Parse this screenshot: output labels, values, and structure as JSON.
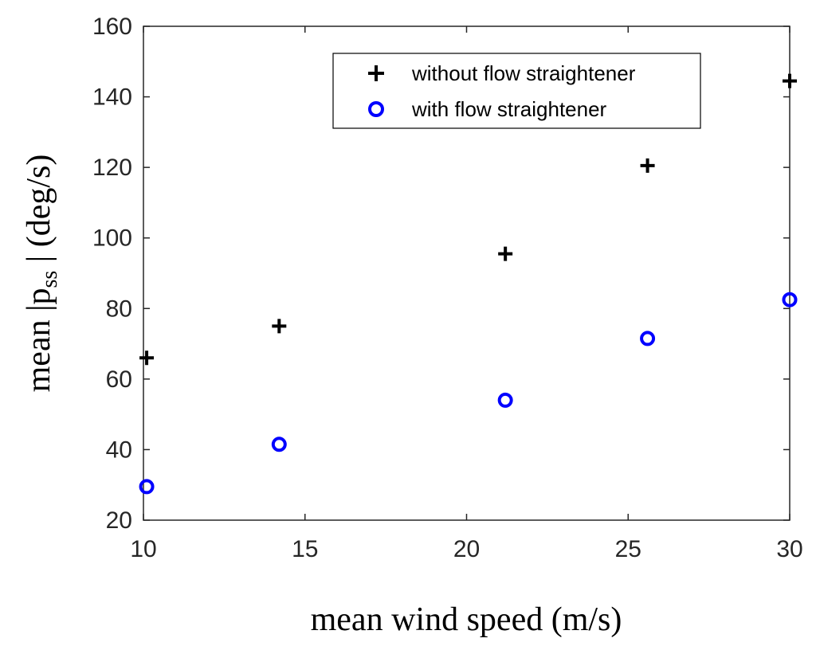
{
  "chart_data": {
    "type": "scatter",
    "title": "",
    "xlabel": "mean wind speed (m/s)",
    "ylabel": {
      "prefix": "mean  |p",
      "subscript": "ss",
      "suffix": " |  (deg/s)"
    },
    "xlim": [
      10,
      30
    ],
    "ylim": [
      20,
      160
    ],
    "xticks": [
      "10",
      "15",
      "20",
      "25",
      "30"
    ],
    "yticks": [
      "20",
      "40",
      "60",
      "80",
      "100",
      "120",
      "140",
      "160"
    ],
    "grid": false,
    "legend_position": "top-right",
    "series": [
      {
        "name": "without flow straightener",
        "marker": "plus",
        "color": "#000000",
        "x": [
          10.1,
          14.2,
          21.2,
          25.6,
          30.0
        ],
        "y": [
          66,
          75,
          95.5,
          120.5,
          144.5
        ]
      },
      {
        "name": "with flow straightener",
        "marker": "circle",
        "color": "#0000ff",
        "x": [
          10.1,
          14.2,
          21.2,
          25.6,
          30.0
        ],
        "y": [
          29.5,
          41.5,
          54,
          71.5,
          82.5
        ]
      }
    ]
  }
}
